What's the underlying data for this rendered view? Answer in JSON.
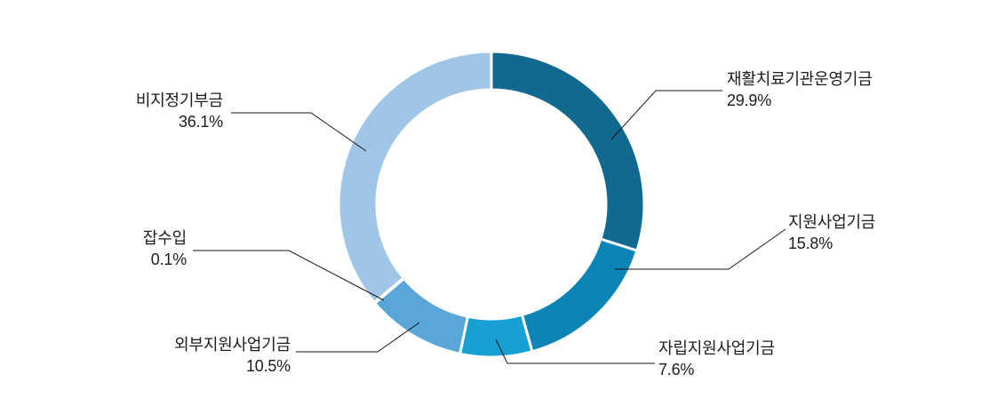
{
  "chart_data": {
    "type": "pie",
    "subtype": "donut",
    "title": "",
    "unit": "%",
    "total": 100.0,
    "start_angle_deg": 0,
    "direction": "clockwise",
    "legend_position": "callout-labels",
    "background_color": "#ffffff",
    "slices": [
      {
        "label": "재활치료기관운영기금",
        "value": 29.9,
        "display": "29.9%",
        "color": "#12698F"
      },
      {
        "label": "지원사업기금",
        "value": 15.8,
        "display": "15.8%",
        "color": "#0D84B6"
      },
      {
        "label": "자립지원사업기금",
        "value": 7.6,
        "display": "7.6%",
        "color": "#189FD3"
      },
      {
        "label": "외부지원사업기금",
        "value": 10.5,
        "display": "10.5%",
        "color": "#59A6D8"
      },
      {
        "label": "잡수입",
        "value": 0.1,
        "display": "0.1%",
        "color": "#74B1DE"
      },
      {
        "label": "비지정기부금",
        "value": 36.1,
        "display": "36.1%",
        "color": "#9FC6E6"
      }
    ]
  }
}
